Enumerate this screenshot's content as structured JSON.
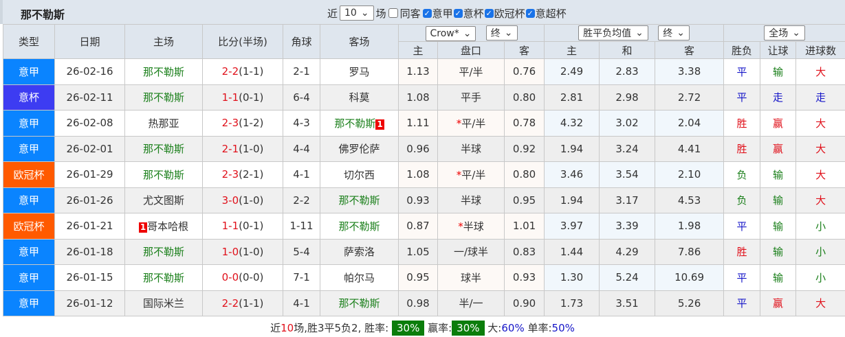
{
  "title": "那不勒斯",
  "filters": {
    "recent_label": "近",
    "recent_value": "10",
    "games_label": "场",
    "same_label": "同客",
    "leagues": [
      "意甲",
      "意杯",
      "欧冠杯",
      "意超杯"
    ]
  },
  "selects": {
    "company": "Crow*",
    "company_stage": "终",
    "avg": "胜平负均值",
    "avg_stage": "终",
    "scope": "全场"
  },
  "headers": {
    "type": "类型",
    "date": "日期",
    "home": "主场",
    "score": "比分(半场)",
    "corner": "角球",
    "away": "客场",
    "h": "主",
    "line": "盘口",
    "a": "客",
    "ah": "主",
    "ad": "和",
    "aa": "客",
    "result": "胜负",
    "handicap": "让球",
    "goals": "进球数"
  },
  "colors": {
    "意甲": "#0a84ff",
    "意杯": "#3d3cf2",
    "欧冠杯": "#ff5a00"
  },
  "rows": [
    {
      "type": "意甲",
      "date": "26-02-16",
      "home": "那不勒斯",
      "home_badge": "",
      "score": "2-2",
      "ht": "(1-1)",
      "corner": "2-1",
      "away": "罗马",
      "away_badge": "",
      "ch": "1.13",
      "star": "",
      "line": "平/半",
      "ca": "0.76",
      "ah": "2.49",
      "ad": "2.83",
      "aa": "3.38",
      "result": "平",
      "handicap": "输",
      "goals": "大"
    },
    {
      "type": "意杯",
      "date": "26-02-11",
      "home": "那不勒斯",
      "home_badge": "",
      "score": "1-1",
      "ht": "(0-1)",
      "corner": "6-4",
      "away": "科莫",
      "away_badge": "",
      "ch": "1.08",
      "star": "",
      "line": "平手",
      "ca": "0.80",
      "ah": "2.81",
      "ad": "2.98",
      "aa": "2.72",
      "result": "平",
      "handicap": "走",
      "goals": "走"
    },
    {
      "type": "意甲",
      "date": "26-02-08",
      "home": "热那亚",
      "home_badge": "",
      "score": "2-3",
      "ht": "(1-2)",
      "corner": "4-3",
      "away": "那不勒斯",
      "away_badge": "1",
      "ch": "1.11",
      "star": "*",
      "line": "平/半",
      "ca": "0.78",
      "ah": "4.32",
      "ad": "3.02",
      "aa": "2.04",
      "result": "胜",
      "handicap": "赢",
      "goals": "大"
    },
    {
      "type": "意甲",
      "date": "26-02-01",
      "home": "那不勒斯",
      "home_badge": "",
      "score": "2-1",
      "ht": "(1-0)",
      "corner": "4-4",
      "away": "佛罗伦萨",
      "away_badge": "",
      "ch": "0.96",
      "star": "",
      "line": "半球",
      "ca": "0.92",
      "ah": "1.94",
      "ad": "3.24",
      "aa": "4.41",
      "result": "胜",
      "handicap": "赢",
      "goals": "大"
    },
    {
      "type": "欧冠杯",
      "date": "26-01-29",
      "home": "那不勒斯",
      "home_badge": "",
      "score": "2-3",
      "ht": "(2-1)",
      "corner": "4-1",
      "away": "切尔西",
      "away_badge": "",
      "ch": "1.08",
      "star": "*",
      "line": "平/半",
      "ca": "0.80",
      "ah": "3.46",
      "ad": "3.54",
      "aa": "2.10",
      "result": "负",
      "handicap": "输",
      "goals": "大"
    },
    {
      "type": "意甲",
      "date": "26-01-26",
      "home": "尤文图斯",
      "home_badge": "",
      "score": "3-0",
      "ht": "(1-0)",
      "corner": "2-2",
      "away": "那不勒斯",
      "away_badge": "",
      "ch": "0.93",
      "star": "",
      "line": "半球",
      "ca": "0.95",
      "ah": "1.94",
      "ad": "3.17",
      "aa": "4.53",
      "result": "负",
      "handicap": "输",
      "goals": "大"
    },
    {
      "type": "欧冠杯",
      "date": "26-01-21",
      "home": "哥本哈根",
      "home_badge": "1",
      "score": "1-1",
      "ht": "(0-1)",
      "corner": "1-11",
      "away": "那不勒斯",
      "away_badge": "",
      "ch": "0.87",
      "star": "*",
      "line": "半球",
      "ca": "1.01",
      "ah": "3.97",
      "ad": "3.39",
      "aa": "1.98",
      "result": "平",
      "handicap": "输",
      "goals": "小"
    },
    {
      "type": "意甲",
      "date": "26-01-18",
      "home": "那不勒斯",
      "home_badge": "",
      "score": "1-0",
      "ht": "(1-0)",
      "corner": "5-4",
      "away": "萨索洛",
      "away_badge": "",
      "ch": "1.05",
      "star": "",
      "line": "一/球半",
      "ca": "0.83",
      "ah": "1.44",
      "ad": "4.29",
      "aa": "7.86",
      "result": "胜",
      "handicap": "输",
      "goals": "小"
    },
    {
      "type": "意甲",
      "date": "26-01-15",
      "home": "那不勒斯",
      "home_badge": "",
      "score": "0-0",
      "ht": "(0-0)",
      "corner": "7-1",
      "away": "帕尔马",
      "away_badge": "",
      "ch": "0.95",
      "star": "",
      "line": "球半",
      "ca": "0.93",
      "ah": "1.30",
      "ad": "5.24",
      "aa": "10.69",
      "result": "平",
      "handicap": "输",
      "goals": "小"
    },
    {
      "type": "意甲",
      "date": "26-01-12",
      "home": "国际米兰",
      "home_badge": "",
      "score": "2-2",
      "ht": "(1-1)",
      "corner": "4-1",
      "away": "那不勒斯",
      "away_badge": "",
      "ch": "0.98",
      "star": "",
      "line": "半/一",
      "ca": "0.90",
      "ah": "1.73",
      "ad": "3.51",
      "aa": "5.26",
      "result": "平",
      "handicap": "赢",
      "goals": "大"
    }
  ],
  "footer": {
    "p1": "近",
    "n": "10",
    "p2": "场,胜3平5负2, 胜率:",
    "win": "30%",
    "p3": "赢率:",
    "cover": "30%",
    "p4": "大:",
    "big": "60%",
    "p5": "单率:",
    "odd": "50%"
  }
}
